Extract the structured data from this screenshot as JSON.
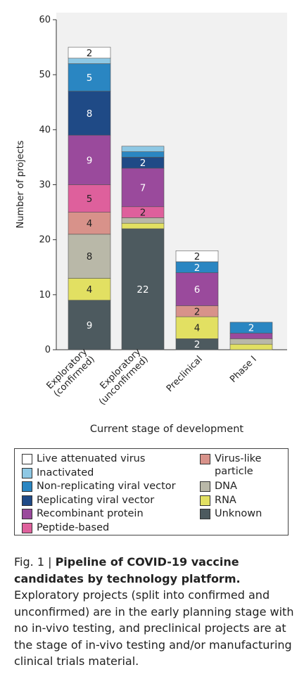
{
  "chart_data": {
    "type": "stacked_bar",
    "ylabel": "Number of projects",
    "xlabel": "Current stage of development",
    "categories": [
      "Exploratory\n(confirmed)",
      "Exploratory\n(unconfirmed)",
      "Preclinical",
      "Phase I"
    ],
    "ylim": [
      0,
      60
    ],
    "yticks": [
      0,
      10,
      20,
      30,
      40,
      50,
      60
    ],
    "series": [
      {
        "name": "Live attenuated virus",
        "color": "#ffffff",
        "values": [
          2,
          0,
          2,
          0
        ]
      },
      {
        "name": "Inactivated",
        "color": "#8ec8e4",
        "values": [
          1,
          1,
          0,
          0
        ]
      },
      {
        "name": "Non-replicating viral vector",
        "color": "#2a86c2",
        "values": [
          5,
          1,
          2,
          2
        ]
      },
      {
        "name": "Replicating viral vector",
        "color": "#1f4a86",
        "values": [
          8,
          2,
          0,
          0
        ]
      },
      {
        "name": "Recombinant protein",
        "color": "#9a4a9c",
        "values": [
          9,
          7,
          6,
          1
        ]
      },
      {
        "name": "Peptide-based",
        "color": "#de609c",
        "values": [
          5,
          2,
          0,
          0
        ]
      },
      {
        "name": "Virus-like particle",
        "color": "#d8928a",
        "values": [
          4,
          0,
          2,
          0
        ]
      },
      {
        "name": "DNA",
        "color": "#b9b8a8",
        "values": [
          8,
          1,
          0,
          1
        ]
      },
      {
        "name": "RNA",
        "color": "#e2e062",
        "values": [
          4,
          1,
          4,
          1
        ]
      },
      {
        "name": "Unknown",
        "color": "#4d5a5f",
        "values": [
          9,
          22,
          2,
          0
        ]
      }
    ]
  },
  "caption": {
    "label": "Fig. 1 |",
    "title": "Pipeline of COVID-19 vaccine candidates by technology platform.",
    "text": "Exploratory projects (split into confirmed and unconfirmed) are in the early planning stage with no in-vivo testing, and preclinical projects are at the stage of in-vivo testing and/or manufacturing clinical trials material."
  }
}
